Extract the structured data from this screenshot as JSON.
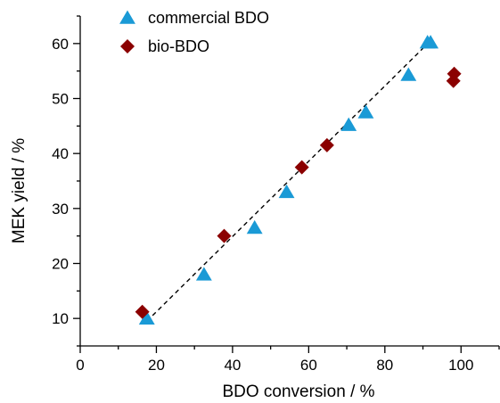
{
  "chart_data": {
    "type": "scatter",
    "xlabel": "BDO conversion / %",
    "ylabel": "MEK yield / %",
    "xlim": [
      0,
      110
    ],
    "ylim": [
      5,
      65
    ],
    "x_ticks": [
      0,
      20,
      40,
      60,
      80,
      100
    ],
    "y_ticks": [
      10,
      20,
      30,
      40,
      50,
      60
    ],
    "grid": false,
    "legend_position": "top-left",
    "series": [
      {
        "name": "commercial BDO",
        "marker": "triangle",
        "color": "#1a9ad6",
        "points": [
          {
            "x": 17.5,
            "y": 10.0
          },
          {
            "x": 32.5,
            "y": 18.0
          },
          {
            "x": 45.8,
            "y": 26.5
          },
          {
            "x": 54.2,
            "y": 33.0
          },
          {
            "x": 70.5,
            "y": 45.2
          },
          {
            "x": 75.0,
            "y": 47.5
          },
          {
            "x": 86.2,
            "y": 54.3
          },
          {
            "x": 91.2,
            "y": 60.2
          },
          {
            "x": 92.0,
            "y": 60.2
          }
        ]
      },
      {
        "name": "bio-BDO",
        "marker": "diamond",
        "color": "#8b0000",
        "points": [
          {
            "x": 16.3,
            "y": 11.2
          },
          {
            "x": 37.8,
            "y": 25.0
          },
          {
            "x": 58.2,
            "y": 37.5
          },
          {
            "x": 64.8,
            "y": 41.5
          },
          {
            "x": 98.2,
            "y": 54.5
          },
          {
            "x": 98.0,
            "y": 53.2
          }
        ]
      }
    ],
    "fit_line": {
      "style": "dashed",
      "color": "#000000",
      "x": [
        17.5,
        92.0
      ],
      "y": [
        9.5,
        60.5
      ]
    }
  }
}
